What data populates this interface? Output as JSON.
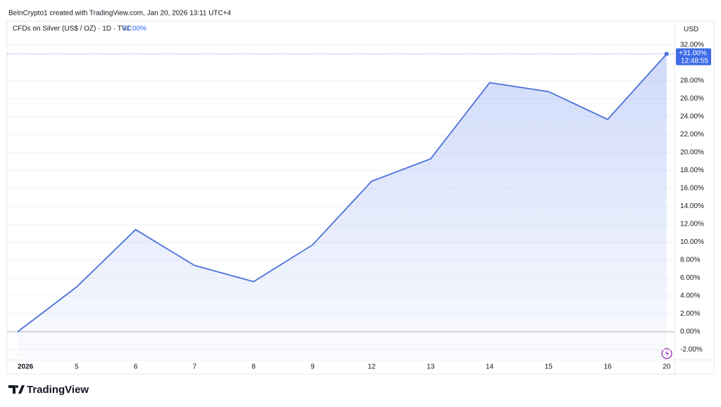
{
  "header": "BeInCrypto1 created with TradingView.com, Jan 20, 2026 13:11 UTC+4",
  "brand": "TradingView",
  "chart_data": {
    "type": "area",
    "title": "CFDs on Silver (US$ / OZ) · 1D · TVC",
    "legend_value": "31.00%",
    "y_axis_label": "USD",
    "last_label": "+31.00%",
    "countdown": "12:48:55",
    "color": "#4c72d9",
    "categories": [
      "2026",
      "5",
      "6",
      "7",
      "8",
      "9",
      "12",
      "13",
      "14",
      "15",
      "16",
      "20"
    ],
    "values": [
      0.0,
      5.0,
      11.4,
      7.4,
      5.6,
      9.7,
      16.8,
      19.3,
      27.8,
      26.8,
      23.7,
      31.0
    ],
    "ylim": [
      -2.98,
      34.67
    ],
    "yticks": [
      {
        "value": -2,
        "label": "-2.00%"
      },
      {
        "value": 0,
        "label": "0.00%"
      },
      {
        "value": 2,
        "label": "2.00%"
      },
      {
        "value": 4,
        "label": "4.00%"
      },
      {
        "value": 6,
        "label": "6.00%"
      },
      {
        "value": 8,
        "label": "8.00%"
      },
      {
        "value": 10,
        "label": "10.00%"
      },
      {
        "value": 12,
        "label": "12.00%"
      },
      {
        "value": 14,
        "label": "14.00%"
      },
      {
        "value": 16,
        "label": "16.00%"
      },
      {
        "value": 18,
        "label": "18.00%"
      },
      {
        "value": 20,
        "label": "20.00%"
      },
      {
        "value": 22,
        "label": "22.00%"
      },
      {
        "value": 24,
        "label": "24.00%"
      },
      {
        "value": 26,
        "label": "26.00%"
      },
      {
        "value": 28,
        "label": "28.00%"
      },
      {
        "value": 32,
        "label": "32.00%"
      }
    ],
    "grid": true
  }
}
